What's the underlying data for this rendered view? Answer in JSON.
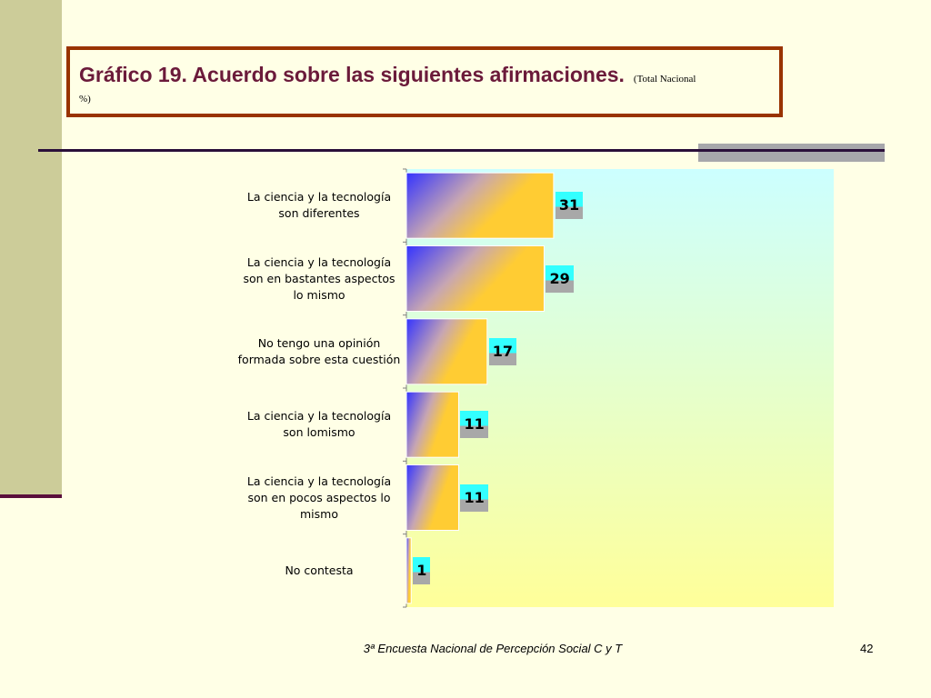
{
  "title": {
    "main": "Gráfico 19. Acuerdo sobre las siguientes afirmaciones.",
    "sub_part1": "(Total Nacional",
    "sub_part2": "%)"
  },
  "chart_data": {
    "type": "bar",
    "orientation": "horizontal",
    "categories": [
      "La ciencia y la tecnología son diferentes",
      "La ciencia y la tecnología son en bastantes aspectos lo mismo",
      "No tengo una opinión formada sobre esta cuestión",
      "La ciencia y la tecnología son lomismo",
      "La ciencia y la tecnología son en pocos aspectos lo mismo",
      "No contesta"
    ],
    "values": [
      31,
      29,
      17,
      11,
      11,
      1
    ],
    "value_labels": [
      "31",
      "29",
      "17",
      "11",
      "11",
      "1"
    ],
    "xlim": [
      0,
      90
    ],
    "grid": false,
    "legend": "none",
    "colors": {
      "plot_bg_top": "#ccffff",
      "plot_bg_bottom": "#ffff99",
      "bar_start": "#3333ff",
      "bar_end": "#ffcc33",
      "label_bg": "#33ffff",
      "label_shadow": "#a8a8a8"
    }
  },
  "footer": {
    "text": "3ª Encuesta Nacional de Percepción Social C y T",
    "page": "42"
  }
}
